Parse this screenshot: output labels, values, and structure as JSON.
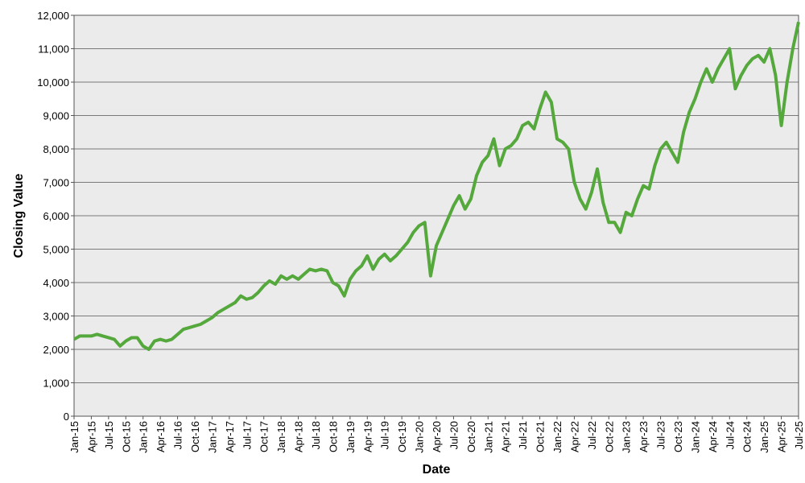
{
  "chart_data": {
    "type": "line",
    "x_label": "Date",
    "y_label": "Closing Value",
    "x": [
      "Jan-15",
      "Feb-15",
      "Mar-15",
      "Apr-15",
      "May-15",
      "Jun-15",
      "Jul-15",
      "Aug-15",
      "Sep-15",
      "Oct-15",
      "Nov-15",
      "Dec-15",
      "Jan-16",
      "Feb-16",
      "Mar-16",
      "Apr-16",
      "May-16",
      "Jun-16",
      "Jul-16",
      "Aug-16",
      "Sep-16",
      "Oct-16",
      "Nov-16",
      "Dec-16",
      "Jan-17",
      "Feb-17",
      "Mar-17",
      "Apr-17",
      "May-17",
      "Jun-17",
      "Jul-17",
      "Aug-17",
      "Sep-17",
      "Oct-17",
      "Nov-17",
      "Dec-17",
      "Jan-18",
      "Feb-18",
      "Mar-18",
      "Apr-18",
      "May-18",
      "Jun-18",
      "Jul-18",
      "Aug-18",
      "Sep-18",
      "Oct-18",
      "Nov-18",
      "Dec-18",
      "Jan-19",
      "Feb-19",
      "Mar-19",
      "Apr-19",
      "May-19",
      "Jun-19",
      "Jul-19",
      "Aug-19",
      "Sep-19",
      "Oct-19",
      "Nov-19",
      "Dec-19",
      "Jan-20",
      "Feb-20",
      "Mar-20",
      "Apr-20",
      "May-20",
      "Jun-20",
      "Jul-20",
      "Aug-20",
      "Sep-20",
      "Oct-20",
      "Nov-20",
      "Dec-20",
      "Jan-21",
      "Feb-21",
      "Mar-21",
      "Apr-21",
      "May-21",
      "Jun-21",
      "Jul-21",
      "Aug-21",
      "Sep-21",
      "Oct-21",
      "Nov-21",
      "Dec-21",
      "Jan-22",
      "Feb-22",
      "Mar-22",
      "Apr-22",
      "May-22",
      "Jun-22",
      "Jul-22",
      "Aug-22",
      "Sep-22",
      "Oct-22",
      "Nov-22",
      "Dec-22",
      "Jan-23",
      "Feb-23",
      "Mar-23",
      "Apr-23",
      "May-23",
      "Jun-23",
      "Jul-23",
      "Aug-23",
      "Sep-23",
      "Oct-23",
      "Nov-23",
      "Dec-23",
      "Jan-24",
      "Feb-24",
      "Mar-24",
      "Apr-24",
      "May-24",
      "Jun-24",
      "Jul-24",
      "Aug-24",
      "Sep-24",
      "Oct-24",
      "Nov-24",
      "Dec-24",
      "Jan-25",
      "Feb-25",
      "Mar-25",
      "Apr-25",
      "May-25",
      "Jun-25",
      "Jul-25"
    ],
    "values": [
      2300,
      2400,
      2400,
      2400,
      2450,
      2400,
      2350,
      2300,
      2100,
      2250,
      2350,
      2350,
      2100,
      2000,
      2250,
      2300,
      2250,
      2300,
      2450,
      2600,
      2650,
      2700,
      2750,
      2850,
      2950,
      3100,
      3200,
      3300,
      3400,
      3600,
      3500,
      3550,
      3700,
      3900,
      4050,
      3950,
      4200,
      4100,
      4200,
      4100,
      4250,
      4400,
      4350,
      4400,
      4350,
      4000,
      3900,
      3600,
      4100,
      4350,
      4500,
      4800,
      4400,
      4700,
      4850,
      4650,
      4800,
      5000,
      5200,
      5500,
      5700,
      5800,
      4200,
      5100,
      5500,
      5900,
      6300,
      6600,
      6200,
      6500,
      7200,
      7600,
      7800,
      8300,
      7500,
      8000,
      8100,
      8300,
      8700,
      8800,
      8600,
      9200,
      9700,
      9400,
      8300,
      8200,
      8000,
      7000,
      6500,
      6200,
      6700,
      7400,
      6400,
      5800,
      5800,
      5500,
      6100,
      6000,
      6500,
      6900,
      6800,
      7500,
      8000,
      8200,
      7900,
      7600,
      8500,
      9100,
      9500,
      10000,
      10400,
      10000,
      10400,
      10700,
      11000,
      9800,
      10200,
      10500,
      10700,
      10800,
      10600,
      11000,
      10200,
      8700,
      10000,
      11000,
      11800
    ],
    "color": "#55a83c",
    "xticks": [
      "Jan-15",
      "Apr-15",
      "Jul-15",
      "Oct-15",
      "Jan-16",
      "Apr-16",
      "Jul-16",
      "Oct-16",
      "Jan-17",
      "Apr-17",
      "Jul-17",
      "Oct-17",
      "Jan-18",
      "Apr-18",
      "Jul-18",
      "Oct-18",
      "Jan-19",
      "Apr-19",
      "Jul-19",
      "Oct-19",
      "Jan-20",
      "Apr-20",
      "Jul-20",
      "Oct-20",
      "Jan-21",
      "Apr-21",
      "Jul-21",
      "Oct-21",
      "Jan-22",
      "Apr-22",
      "Jul-22",
      "Oct-22",
      "Jan-23",
      "Apr-23",
      "Jul-23",
      "Oct-23",
      "Jan-24",
      "Apr-24",
      "Jul-24",
      "Oct-24",
      "Jan-25",
      "Apr-25",
      "Jul-25"
    ],
    "ylim": [
      0,
      12000
    ],
    "yticks": [
      0,
      {
        "value": 1000,
        "label": "1,000"
      },
      {
        "value": 2000,
        "label": "2,000"
      },
      {
        "value": 3000,
        "label": "3,000"
      },
      {
        "value": 4000,
        "label": "4,000"
      },
      {
        "value": 5000,
        "label": "5,000"
      },
      {
        "value": 6000,
        "label": "6,000"
      },
      {
        "value": 7000,
        "label": "7,000"
      },
      {
        "value": 8000,
        "label": "8,000"
      },
      {
        "value": 9000,
        "label": "9,000"
      },
      {
        "value": 10000,
        "label": "10,000"
      },
      {
        "value": 11000,
        "label": "11,000"
      },
      {
        "value": 12000,
        "label": "12,000"
      }
    ],
    "grid": true
  }
}
